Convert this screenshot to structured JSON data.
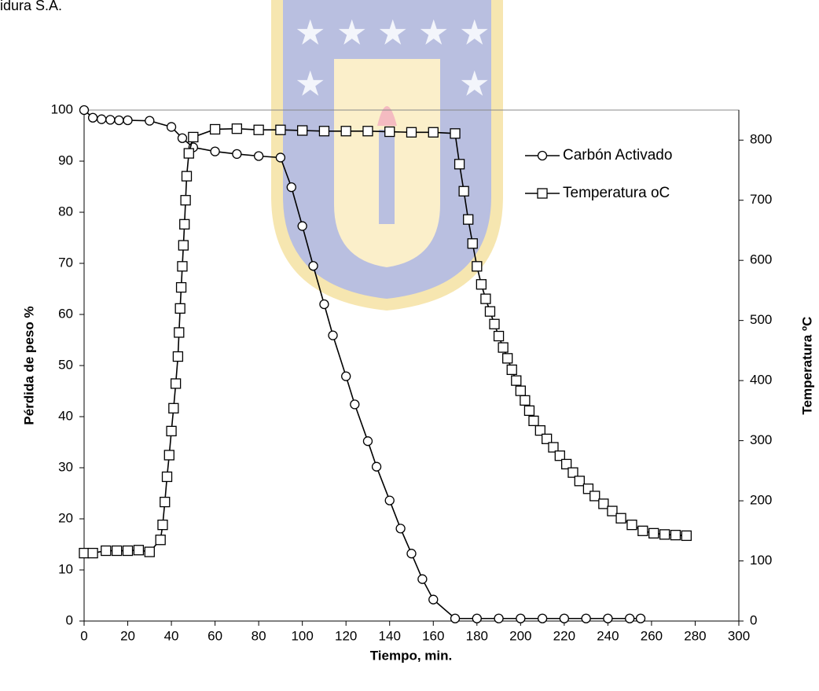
{
  "chart_data": {
    "type": "line",
    "header_text": "idura S.A.",
    "x_label": "Tiempo, min.",
    "y_label": "Pérdida de peso %",
    "y2_label": "Temperatura ºC",
    "xlim": [
      0,
      300
    ],
    "xticks": [
      0,
      20,
      40,
      60,
      80,
      100,
      120,
      140,
      160,
      180,
      200,
      220,
      240,
      260,
      280,
      300
    ],
    "ylim": [
      0,
      100
    ],
    "yticks": [
      0,
      10,
      20,
      30,
      40,
      50,
      60,
      70,
      80,
      90,
      100
    ],
    "y2lim": [
      0,
      850
    ],
    "y2ticks": [
      0,
      100,
      200,
      300,
      400,
      500,
      600,
      700,
      800
    ],
    "legend": "upper right",
    "series": [
      {
        "name": "Carbón Activado",
        "color": "#000000",
        "marker": "circle",
        "x": [
          0,
          4,
          8,
          12,
          16,
          20,
          30,
          40,
          45,
          50,
          60,
          70,
          80,
          90,
          95,
          100,
          105,
          110,
          114,
          120,
          124,
          130,
          134,
          140,
          145,
          150,
          155,
          160,
          170,
          180,
          190,
          200,
          210,
          220,
          230,
          240,
          250,
          255
        ],
        "values": [
          100,
          98.5,
          98.2,
          98.1,
          98,
          98,
          97.9,
          96.7,
          94.5,
          92.7,
          91.9,
          91.4,
          91.0,
          90.7,
          84.9,
          77.3,
          69.5,
          62,
          55.9,
          47.9,
          42.4,
          35.2,
          30.2,
          23.6,
          18.1,
          13.2,
          8.2,
          4.2,
          0.5,
          0.5,
          0.5,
          0.5,
          0.5,
          0.5,
          0.5,
          0.5,
          0.5,
          0.5
        ]
      },
      {
        "name": "Temperatura oC",
        "color": "#000000",
        "marker": "square",
        "axis": "y2",
        "x": [
          0,
          4,
          10,
          15,
          20,
          25,
          30,
          35,
          36,
          37,
          38,
          39,
          40,
          41,
          42,
          43,
          43.5,
          44,
          44.5,
          45,
          45.5,
          46,
          46.5,
          47,
          48,
          50,
          60,
          70,
          80,
          90,
          100,
          110,
          120,
          130,
          140,
          150,
          160,
          170,
          172,
          174,
          176,
          178,
          180,
          182,
          184,
          186,
          188,
          190,
          192,
          194,
          196,
          198,
          200,
          202,
          204,
          206,
          209,
          212,
          215,
          218,
          221,
          224,
          227,
          231,
          234,
          238,
          242,
          246,
          251,
          256,
          261,
          266,
          271,
          276
        ],
        "values": [
          113,
          113,
          117,
          117,
          117,
          118,
          115,
          135,
          160,
          198,
          240,
          276,
          316,
          354,
          395,
          440,
          480,
          520,
          555,
          590,
          625,
          660,
          700,
          740,
          778,
          805,
          818,
          819,
          817,
          817,
          816,
          815,
          815,
          815,
          814,
          813,
          813,
          811,
          760,
          715,
          668,
          628,
          590,
          560,
          536,
          515,
          494,
          474,
          455,
          437,
          418,
          400,
          383,
          367,
          350,
          333,
          317,
          303,
          289,
          275,
          261,
          247,
          233,
          220,
          208,
          195,
          183,
          171,
          160,
          150,
          146,
          144,
          143,
          142
        ]
      }
    ]
  }
}
